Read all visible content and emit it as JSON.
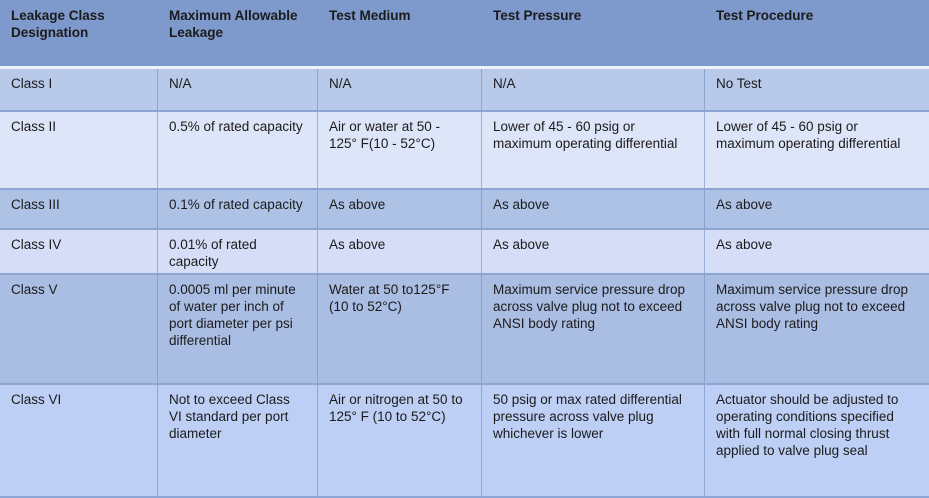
{
  "colors": {
    "header_bg": "#7e99cb",
    "row_bg": [
      "#b9c9e9",
      "#dde5f8",
      "#aec2e6",
      "#d6def7",
      "#aabde2",
      "#bdcff4"
    ],
    "grid_line": "#8da5d2",
    "header_gap_line": "#eef2fb",
    "text": "#1b1b1b"
  },
  "table": {
    "headers": [
      "Leakage Class Designation",
      "Maximum Allowable Leakage",
      "Test Medium",
      "Test Pressure",
      "Test Procedure"
    ],
    "rows": [
      {
        "cells": [
          "Class I",
          "N/A",
          "N/A",
          "N/A",
          "No Test"
        ]
      },
      {
        "cells": [
          "Class II",
          "0.5% of rated capacity",
          "Air or water at 50 - 125° F(10 - 52°C)",
          "Lower of 45 - 60 psig or maximum operating differential",
          "Lower of 45 - 60 psig or maximum operating differential"
        ]
      },
      {
        "cells": [
          "Class III",
          "0.1% of rated capacity",
          "As above",
          "As above",
          "As above"
        ]
      },
      {
        "cells": [
          "Class IV",
          "0.01% of rated capacity",
          "As above",
          "As above",
          "As above"
        ]
      },
      {
        "cells": [
          "Class V",
          "0.0005 ml per minute of water per inch of port diameter per psi differential",
          "Water at 50 to125°F (10 to 52°C)",
          "Maximum service pressure drop across valve plug not to exceed ANSI body rating",
          "Maximum service pressure drop across valve plug not to exceed ANSI body rating"
        ]
      },
      {
        "cells": [
          "Class VI",
          "Not to exceed Class VI standard per port diameter",
          "Air or nitrogen at 50 to 125° F (10 to 52°C)",
          "50 psig or max rated differential pressure across valve plug whichever is lower",
          "Actuator should be adjusted to operating conditions specified with full normal closing thrust applied to valve plug seal"
        ]
      }
    ]
  }
}
